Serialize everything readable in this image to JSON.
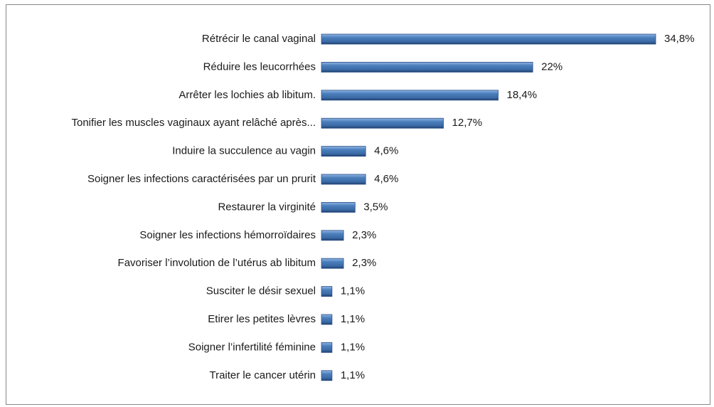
{
  "chart_data": {
    "type": "hbar",
    "categories": [
      "Rétrécir le canal vaginal",
      "Réduire les leucorrhées",
      "Arrêter les lochies ab libitum.",
      "Tonifier les muscles vaginaux ayant relâché après...",
      "Induire la succulence au vagin",
      "Soigner les infections caractérisées par un prurit",
      "Restaurer  la virginité",
      "Soigner les infections hémorroïdaires",
      "Favoriser l’involution de l’utérus ab  libitum",
      "Susciter le désir sexuel",
      "Etirer les petites lèvres",
      "Soigner l’infertilité féminine",
      "Traiter le cancer utérin"
    ],
    "values": [
      34.8,
      22,
      18.4,
      12.7,
      4.6,
      4.6,
      3.5,
      2.3,
      2.3,
      1.1,
      1.1,
      1.1,
      1.1
    ],
    "value_labels": [
      "34,8%",
      "22%",
      "18,4%",
      "12,7%",
      "4,6%",
      "4,6%",
      "3,5%",
      "2,3%",
      "2,3%",
      "1,1%",
      "1,1%",
      "1,1%",
      "1,1%"
    ],
    "color": "#4a7ebb"
  }
}
